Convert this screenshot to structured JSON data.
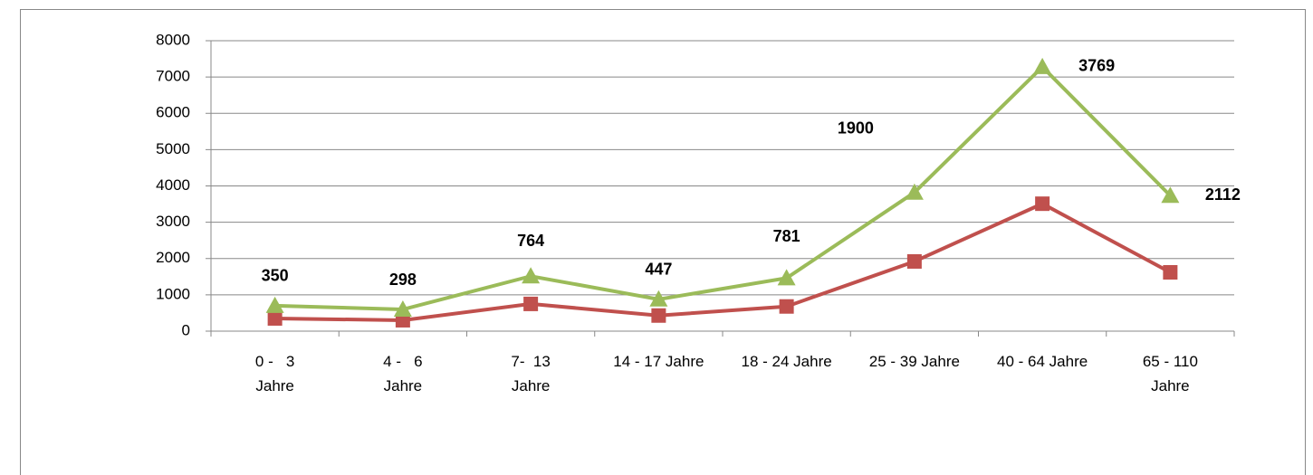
{
  "chart_data": {
    "type": "line",
    "stacked": true,
    "categories": [
      "0 -   3\nJahre",
      "4 -   6\nJahre",
      "7-  13\nJahre",
      "14 - 17 Jahre",
      "18 - 24 Jahre",
      "25 - 39 Jahre",
      "40 - 64 Jahre",
      "65 - 110\nJahre"
    ],
    "series": [
      {
        "color": "#c0504d",
        "marker": "square",
        "values": [
          350,
          300,
          750,
          430,
          680,
          1920,
          3510,
          1620
        ]
      },
      {
        "color": "#9bbb59",
        "marker": "triangle",
        "values": [
          350,
          298,
          764,
          447,
          781,
          1900,
          3769,
          2112
        ],
        "show_value_labels": true
      }
    ],
    "ylim": [
      0,
      8000
    ],
    "yticks": [
      0,
      1000,
      2000,
      3000,
      4000,
      5000,
      6000,
      7000,
      8000
    ],
    "grid": true
  }
}
